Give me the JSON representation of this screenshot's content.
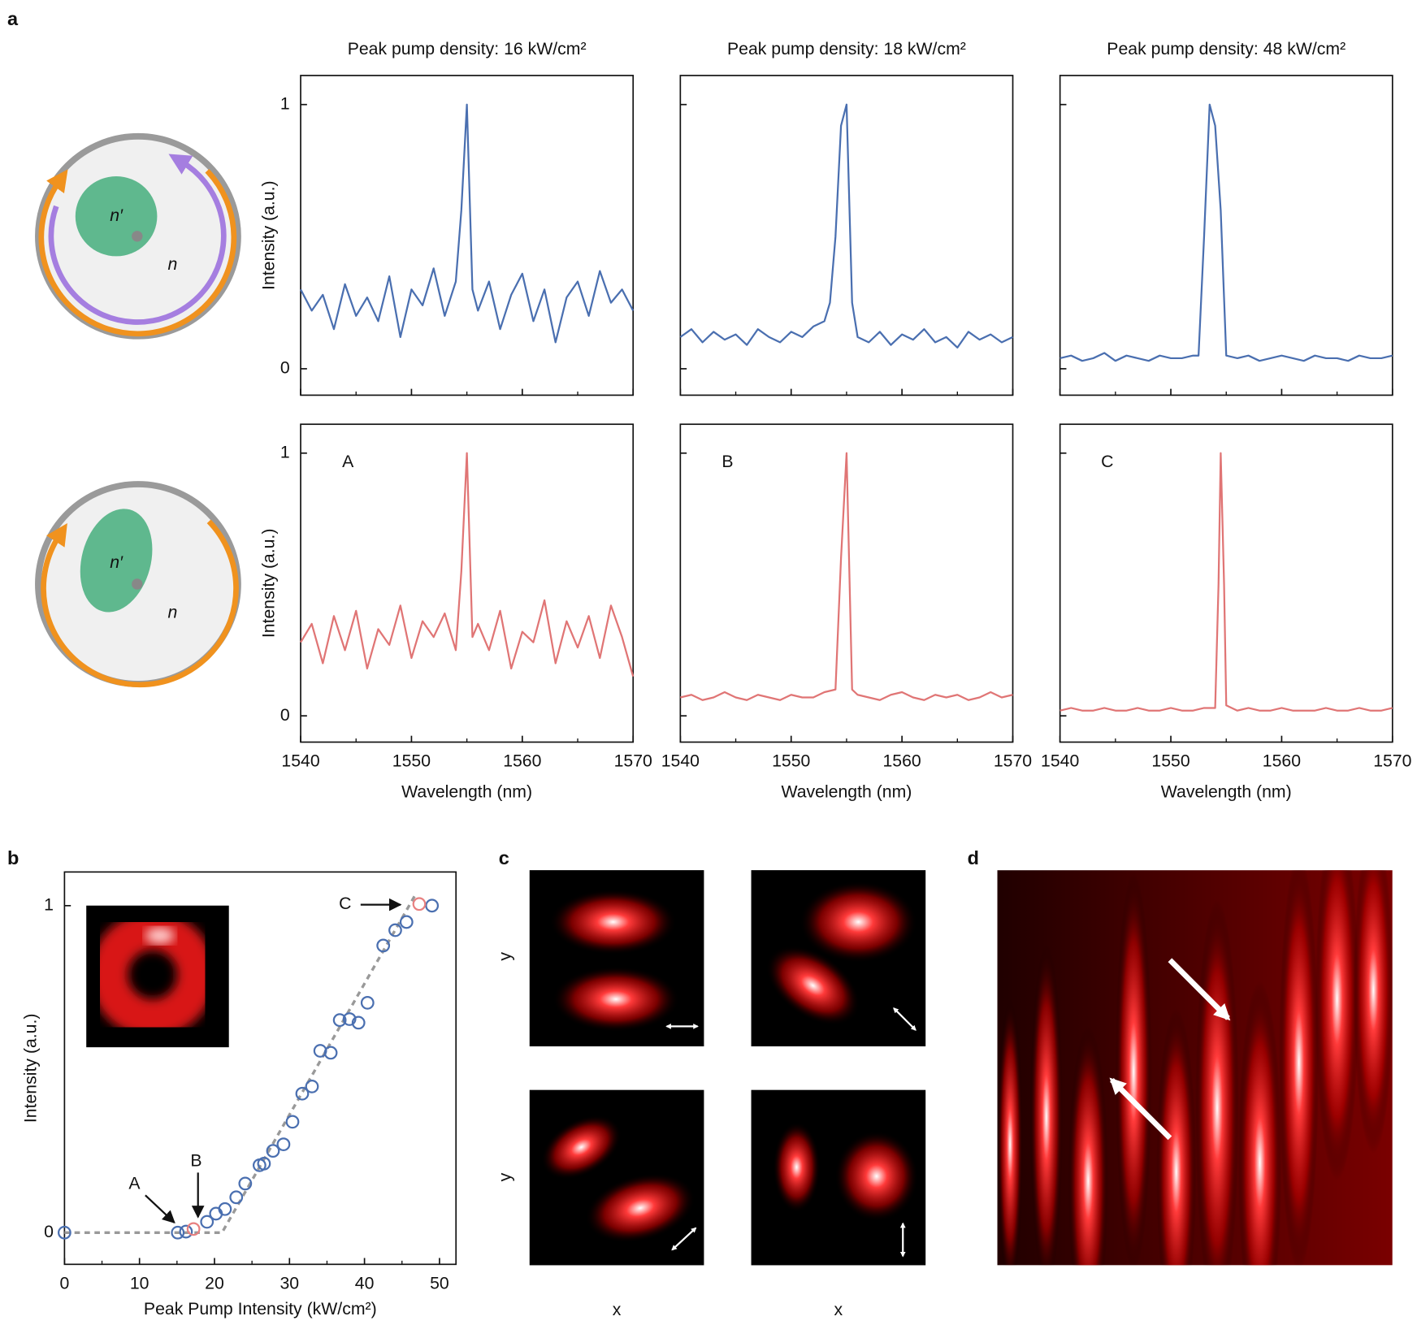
{
  "panel_labels": [
    "a",
    "b",
    "c",
    "d"
  ],
  "diagrams": [
    {
      "inner": "n′",
      "outer": "n"
    },
    {
      "inner": "n′",
      "outer": "n"
    }
  ],
  "panel_c": {
    "y_labels": [
      "y",
      "y"
    ],
    "x_labels": [
      "x",
      "x"
    ]
  },
  "chart_data": [
    {
      "type": "line",
      "title": "Peak pump density: 16 kW/cm²",
      "ylabel": "Intensity (a.u.)",
      "xlim": [
        1540,
        1570
      ],
      "ylim": [
        -0.1,
        1.11
      ],
      "xticks": [
        1540,
        1550,
        1560,
        1570
      ],
      "yticks": [
        0,
        1
      ],
      "show_xtick_labels": false,
      "show_ytick_labels": true,
      "color": "#4a6fb0",
      "x": [
        1540,
        1541,
        1542,
        1543,
        1544,
        1545,
        1546,
        1547,
        1548,
        1549,
        1550,
        1551,
        1552,
        1553,
        1554,
        1554.5,
        1555,
        1555.5,
        1556,
        1557,
        1558,
        1559,
        1560,
        1561,
        1562,
        1563,
        1564,
        1565,
        1566,
        1567,
        1568,
        1569,
        1570
      ],
      "values": [
        0.3,
        0.22,
        0.28,
        0.15,
        0.32,
        0.2,
        0.27,
        0.18,
        0.35,
        0.12,
        0.3,
        0.24,
        0.38,
        0.2,
        0.33,
        0.6,
        1,
        0.3,
        0.22,
        0.33,
        0.15,
        0.28,
        0.36,
        0.18,
        0.3,
        0.1,
        0.27,
        0.33,
        0.2,
        0.37,
        0.25,
        0.3,
        0.22
      ]
    },
    {
      "type": "line",
      "title": "Peak pump density: 18 kW/cm²",
      "xlim": [
        1540,
        1570
      ],
      "ylim": [
        -0.1,
        1.11
      ],
      "xticks": [
        1540,
        1550,
        1560,
        1570
      ],
      "yticks": [
        0,
        1
      ],
      "show_xtick_labels": false,
      "show_ytick_labels": false,
      "color": "#4a6fb0",
      "x": [
        1540,
        1541,
        1542,
        1543,
        1544,
        1545,
        1546,
        1547,
        1548,
        1549,
        1550,
        1551,
        1552,
        1553,
        1553.5,
        1554,
        1554.5,
        1555,
        1555.5,
        1556,
        1557,
        1558,
        1559,
        1560,
        1561,
        1562,
        1563,
        1564,
        1565,
        1566,
        1567,
        1568,
        1569,
        1570
      ],
      "values": [
        0.12,
        0.15,
        0.1,
        0.14,
        0.11,
        0.13,
        0.09,
        0.15,
        0.12,
        0.1,
        0.14,
        0.12,
        0.16,
        0.18,
        0.25,
        0.5,
        0.92,
        1,
        0.25,
        0.12,
        0.1,
        0.14,
        0.09,
        0.13,
        0.11,
        0.15,
        0.1,
        0.12,
        0.08,
        0.14,
        0.11,
        0.13,
        0.1,
        0.12
      ]
    },
    {
      "type": "line",
      "title": "Peak pump density: 48 kW/cm²",
      "xlim": [
        1540,
        1570
      ],
      "ylim": [
        -0.1,
        1.11
      ],
      "xticks": [
        1540,
        1550,
        1560,
        1570
      ],
      "yticks": [
        0,
        1
      ],
      "show_xtick_labels": false,
      "show_ytick_labels": false,
      "color": "#4a6fb0",
      "x": [
        1540,
        1541,
        1542,
        1543,
        1544,
        1545,
        1546,
        1547,
        1548,
        1549,
        1550,
        1551,
        1552,
        1552.5,
        1553,
        1553.5,
        1554,
        1554.5,
        1555,
        1556,
        1557,
        1558,
        1559,
        1560,
        1561,
        1562,
        1563,
        1564,
        1565,
        1566,
        1567,
        1568,
        1569,
        1570
      ],
      "values": [
        0.04,
        0.05,
        0.03,
        0.04,
        0.06,
        0.03,
        0.05,
        0.04,
        0.03,
        0.05,
        0.04,
        0.04,
        0.05,
        0.05,
        0.5,
        1,
        0.92,
        0.6,
        0.05,
        0.04,
        0.05,
        0.03,
        0.04,
        0.05,
        0.04,
        0.03,
        0.05,
        0.04,
        0.04,
        0.03,
        0.05,
        0.04,
        0.04,
        0.05
      ]
    },
    {
      "type": "line",
      "annotation": "A",
      "ylabel": "Intensity (a.u.)",
      "xlabel": "Wavelength (nm)",
      "xlim": [
        1540,
        1570
      ],
      "ylim": [
        -0.1,
        1.11
      ],
      "xticks": [
        1540,
        1550,
        1560,
        1570
      ],
      "yticks": [
        0,
        1
      ],
      "show_xtick_labels": true,
      "show_ytick_labels": true,
      "color": "#e07575",
      "x": [
        1540,
        1541,
        1542,
        1543,
        1544,
        1545,
        1546,
        1547,
        1548,
        1549,
        1550,
        1551,
        1552,
        1553,
        1554,
        1554.5,
        1555,
        1555.5,
        1556,
        1557,
        1558,
        1559,
        1560,
        1561,
        1562,
        1563,
        1564,
        1565,
        1566,
        1567,
        1568,
        1569,
        1570
      ],
      "values": [
        0.28,
        0.35,
        0.2,
        0.38,
        0.25,
        0.4,
        0.18,
        0.33,
        0.27,
        0.42,
        0.22,
        0.36,
        0.3,
        0.39,
        0.25,
        0.55,
        1,
        0.3,
        0.35,
        0.25,
        0.4,
        0.18,
        0.32,
        0.28,
        0.44,
        0.2,
        0.36,
        0.26,
        0.38,
        0.22,
        0.42,
        0.3,
        0.15
      ]
    },
    {
      "type": "line",
      "annotation": "B",
      "xlabel": "Wavelength (nm)",
      "xlim": [
        1540,
        1570
      ],
      "ylim": [
        -0.1,
        1.11
      ],
      "xticks": [
        1540,
        1550,
        1560,
        1570
      ],
      "yticks": [
        0,
        1
      ],
      "show_xtick_labels": true,
      "show_ytick_labels": false,
      "color": "#e07575",
      "x": [
        1540,
        1541,
        1542,
        1543,
        1544,
        1545,
        1546,
        1547,
        1548,
        1549,
        1550,
        1551,
        1552,
        1553,
        1554,
        1554.5,
        1555,
        1555.5,
        1556,
        1557,
        1558,
        1559,
        1560,
        1561,
        1562,
        1563,
        1564,
        1565,
        1566,
        1567,
        1568,
        1569,
        1570
      ],
      "values": [
        0.07,
        0.08,
        0.06,
        0.07,
        0.09,
        0.07,
        0.06,
        0.08,
        0.07,
        0.06,
        0.08,
        0.07,
        0.07,
        0.09,
        0.1,
        0.6,
        1,
        0.1,
        0.08,
        0.07,
        0.06,
        0.08,
        0.09,
        0.07,
        0.06,
        0.08,
        0.07,
        0.08,
        0.06,
        0.07,
        0.09,
        0.07,
        0.08
      ]
    },
    {
      "type": "line",
      "annotation": "C",
      "xlabel": "Wavelength (nm)",
      "xlim": [
        1540,
        1570
      ],
      "ylim": [
        -0.1,
        1.11
      ],
      "xticks": [
        1540,
        1550,
        1560,
        1570
      ],
      "yticks": [
        0,
        1
      ],
      "show_xtick_labels": true,
      "show_ytick_labels": false,
      "color": "#e07575",
      "x": [
        1540,
        1541,
        1542,
        1543,
        1544,
        1545,
        1546,
        1547,
        1548,
        1549,
        1550,
        1551,
        1552,
        1553,
        1554,
        1554.3,
        1554.5,
        1554.8,
        1555,
        1556,
        1557,
        1558,
        1559,
        1560,
        1561,
        1562,
        1563,
        1564,
        1565,
        1566,
        1567,
        1568,
        1569,
        1570
      ],
      "values": [
        0.02,
        0.03,
        0.02,
        0.02,
        0.03,
        0.02,
        0.02,
        0.03,
        0.02,
        0.02,
        0.03,
        0.02,
        0.02,
        0.03,
        0.03,
        0.5,
        1,
        0.5,
        0.04,
        0.02,
        0.03,
        0.02,
        0.02,
        0.03,
        0.02,
        0.02,
        0.02,
        0.03,
        0.02,
        0.02,
        0.03,
        0.02,
        0.02,
        0.03
      ]
    },
    {
      "type": "scatter",
      "xlabel": "Peak Pump Intensity (kW/cm²)",
      "ylabel": "Intensity (a.u.)",
      "xlim": [
        0,
        52.2
      ],
      "ylim": [
        -0.097,
        1.103
      ],
      "xticks": [
        0,
        10,
        20,
        30,
        40,
        50
      ],
      "yticks": [
        0,
        1
      ],
      "show_xtick_labels": true,
      "show_ytick_labels": true,
      "annotations": [
        "A",
        "B",
        "C"
      ],
      "series": [
        {
          "color": "#999999",
          "style": "dashed",
          "x": [
            0,
            21,
            46.7
          ],
          "values": [
            0,
            0,
            1.03
          ]
        },
        {
          "color": "#4a6fb0",
          "style": "markers",
          "x": [
            0,
            15.1,
            16.2,
            19,
            20.2,
            21.4,
            22.9,
            24.1,
            26,
            26.6,
            27.8,
            29.2,
            30.4,
            31.7,
            33,
            34.1,
            35.5,
            36.7,
            38,
            39.2,
            40.4,
            42.5,
            44.1,
            45.6,
            49
          ],
          "values": [
            0,
            0,
            0.003,
            0.033,
            0.058,
            0.072,
            0.108,
            0.15,
            0.206,
            0.211,
            0.25,
            0.27,
            0.339,
            0.425,
            0.447,
            0.556,
            0.55,
            0.65,
            0.653,
            0.642,
            0.703,
            0.878,
            0.925,
            0.95,
            1
          ]
        },
        {
          "color": "#e88080",
          "style": "markers",
          "x": [
            17.2,
            47.3
          ],
          "values": [
            0.011,
            1.005
          ]
        }
      ]
    }
  ]
}
